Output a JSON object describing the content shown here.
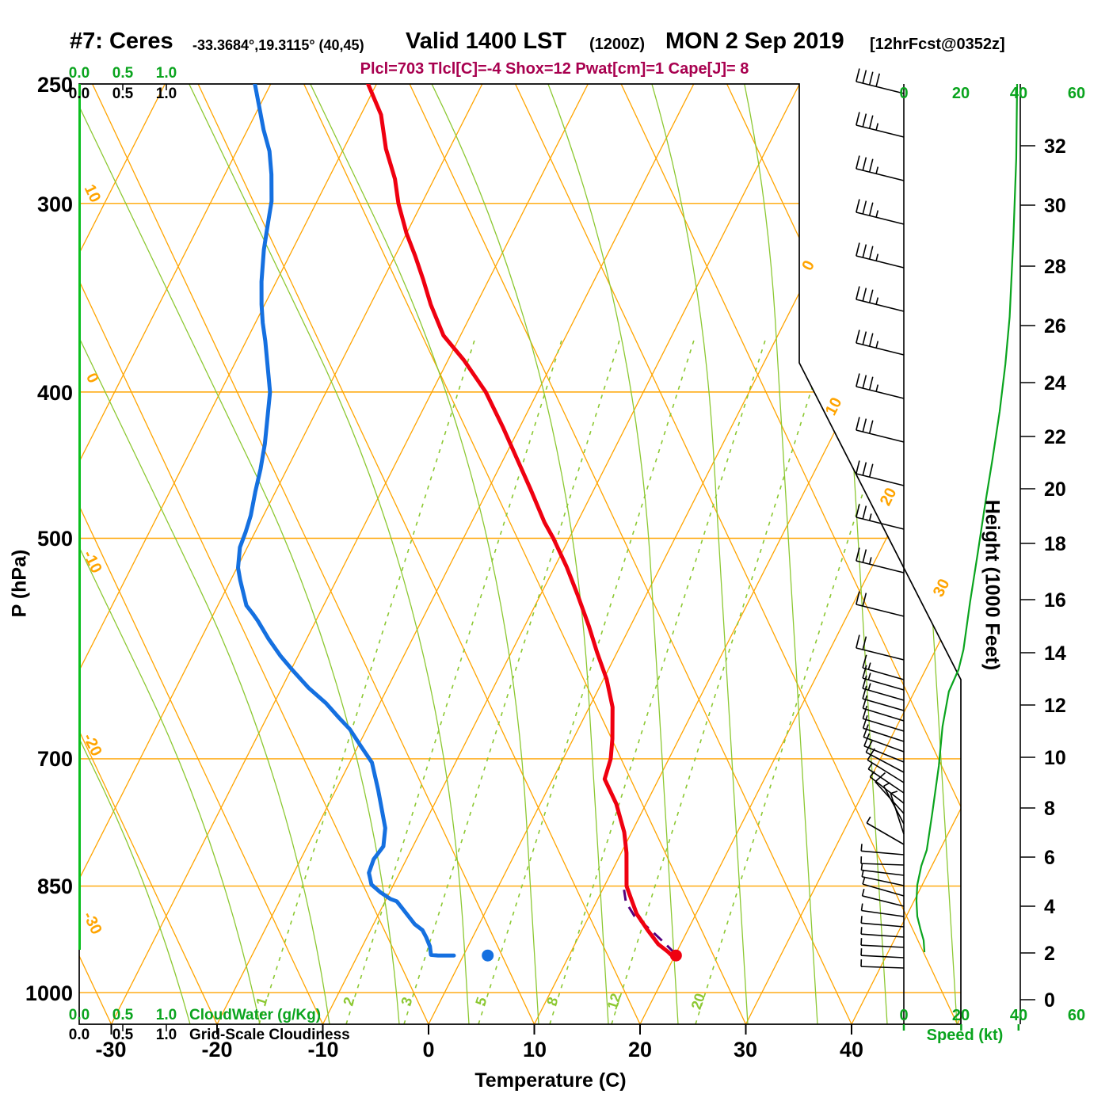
{
  "title": {
    "station": "#7: Ceres",
    "coords": "-33.3684°,19.3115° (40,45)",
    "valid": "Valid 1400 LST",
    "zulu": "(1200Z)",
    "date": "MON 2 Sep 2019",
    "fcst": "[12hrFcst@0352z]"
  },
  "params_line": "Plcl=703 Tlcl[C]=-4 Shox=12 Pwat[cm]=1 Cape[J]= 8",
  "labels": {
    "pressure_axis": "P (hPa)",
    "temp_axis": "Temperature (C)",
    "height_axis": "Height (1000 Feet)",
    "speed_axis": "Speed (kt)",
    "cloudwater": "CloudWater (g/Kg)",
    "cloudiness": "Grid-Scale Cloudiness",
    "cloud_scale": [
      "0.0",
      "0.5",
      "1.0"
    ]
  },
  "colors": {
    "grid_orange": "#ffa400",
    "line_green": "#8cc832",
    "label_green": "#0aa41e",
    "temp_red": "#ef0010",
    "dewpoint_blue": "#1570e0",
    "parcel_purple": "#55007d",
    "params_magenta": "#a8004f",
    "frame_black": "#000000"
  },
  "chart_data": {
    "type": "skewt-log-p",
    "pressure_ticks": [
      250,
      300,
      400,
      500,
      700,
      850,
      1000
    ],
    "temp_ticks": [
      -30,
      -20,
      -10,
      0,
      10,
      20,
      30,
      40
    ],
    "speed_ticks": [
      0,
      20,
      40,
      60
    ],
    "height_ticks_kft": [
      [
        0,
        1262
      ],
      [
        2,
        1203
      ],
      [
        4,
        1144
      ],
      [
        6,
        1082
      ],
      [
        8,
        1020
      ],
      [
        10,
        956
      ],
      [
        12,
        890
      ],
      [
        14,
        824
      ],
      [
        16,
        757
      ],
      [
        18,
        686
      ],
      [
        20,
        617
      ],
      [
        22,
        551
      ],
      [
        24,
        483
      ],
      [
        26,
        411
      ],
      [
        28,
        336
      ],
      [
        30,
        259
      ],
      [
        32,
        184
      ]
    ],
    "mixing_ratio_lines": [
      1,
      2,
      3,
      5,
      8,
      12,
      20
    ],
    "mixing_ratio_x": [
      327,
      437,
      510,
      604,
      694,
      772,
      878
    ],
    "isotherm_edge_labels": [
      [
        0,
        1026,
        338
      ],
      [
        10,
        1058,
        516
      ],
      [
        20,
        1127,
        630
      ],
      [
        30,
        1194,
        745
      ]
    ],
    "adiabat_edge_labels": [
      [
        10,
        247
      ],
      [
        0,
        480
      ],
      [
        -10,
        712
      ],
      [
        -20,
        943
      ],
      [
        -30,
        1168
      ]
    ],
    "temperature_profile": [
      [
        250,
        -50.8
      ],
      [
        262,
        -48.1
      ],
      [
        276,
        -46.0
      ],
      [
        289,
        -43.7
      ],
      [
        300,
        -42.2
      ],
      [
        314,
        -40.0
      ],
      [
        325,
        -38.1
      ],
      [
        337,
        -36.2
      ],
      [
        350,
        -34.3
      ],
      [
        367,
        -31.6
      ],
      [
        381,
        -28.5
      ],
      [
        400,
        -24.9
      ],
      [
        422,
        -21.6
      ],
      [
        444,
        -18.6
      ],
      [
        464,
        -16.0
      ],
      [
        488,
        -13.1
      ],
      [
        500,
        -11.5
      ],
      [
        522,
        -8.9
      ],
      [
        545,
        -6.5
      ],
      [
        572,
        -3.9
      ],
      [
        595,
        -1.9
      ],
      [
        620,
        0.3
      ],
      [
        647,
        2.2
      ],
      [
        679,
        3.7
      ],
      [
        700,
        4.5
      ],
      [
        722,
        4.9
      ],
      [
        750,
        7.2
      ],
      [
        783,
        9.3
      ],
      [
        808,
        10.5
      ],
      [
        850,
        12.1
      ],
      [
        866,
        13.1
      ],
      [
        887,
        14.4
      ],
      [
        909,
        16.2
      ],
      [
        929,
        17.9
      ],
      [
        940,
        19.2
      ],
      [
        944,
        19.6
      ]
    ],
    "dewpoint_profile": [
      [
        250,
        -61.5
      ],
      [
        268,
        -58.5
      ],
      [
        277,
        -56.9
      ],
      [
        287,
        -55.6
      ],
      [
        299,
        -54.3
      ],
      [
        309,
        -53.6
      ],
      [
        322,
        -52.7
      ],
      [
        338,
        -51.4
      ],
      [
        350,
        -50.3
      ],
      [
        360,
        -49.3
      ],
      [
        370,
        -48.2
      ],
      [
        400,
        -45.3
      ],
      [
        433,
        -43.3
      ],
      [
        450,
        -42.5
      ],
      [
        466,
        -41.9
      ],
      [
        483,
        -41.2
      ],
      [
        495,
        -40.9
      ],
      [
        507,
        -40.7
      ],
      [
        523,
        -39.9
      ],
      [
        533,
        -39.1
      ],
      [
        554,
        -37.3
      ],
      [
        561,
        -36.3
      ],
      [
        567,
        -35.5
      ],
      [
        583,
        -33.6
      ],
      [
        598,
        -31.7
      ],
      [
        611,
        -29.9
      ],
      [
        628,
        -27.5
      ],
      [
        643,
        -25.1
      ],
      [
        658,
        -23.1
      ],
      [
        669,
        -21.6
      ],
      [
        686,
        -19.8
      ],
      [
        704,
        -17.9
      ],
      [
        734,
        -16.0
      ],
      [
        778,
        -13.5
      ],
      [
        800,
        -12.8
      ],
      [
        816,
        -13.1
      ],
      [
        833,
        -12.9
      ],
      [
        848,
        -12.1
      ],
      [
        858,
        -10.9
      ],
      [
        867,
        -9.6
      ],
      [
        870,
        -8.9
      ],
      [
        882,
        -7.8
      ],
      [
        901,
        -6.1
      ],
      [
        909,
        -5.1
      ],
      [
        919,
        -4.4
      ],
      [
        932,
        -3.6
      ],
      [
        944,
        -3.1
      ],
      [
        945,
        -2.4
      ],
      [
        945,
        -0.9
      ]
    ],
    "parcel_profile": [
      [
        942,
        19.9
      ],
      [
        927,
        18.4
      ],
      [
        909,
        16.5
      ],
      [
        890,
        14.3
      ],
      [
        871,
        12.8
      ],
      [
        854,
        12.0
      ]
    ],
    "surface_points": {
      "temp": {
        "p": 945,
        "t": 20.1
      },
      "dewpoint": {
        "p": 945,
        "t": 2.3
      }
    },
    "wind_speed_profile": [
      [
        106,
        39.5
      ],
      [
        200,
        39.2
      ],
      [
        300,
        38.2
      ],
      [
        400,
        36.9
      ],
      [
        460,
        35.4
      ],
      [
        520,
        33.4
      ],
      [
        580,
        30.9
      ],
      [
        640,
        28.2
      ],
      [
        700,
        25.7
      ],
      [
        760,
        23.1
      ],
      [
        820,
        20.8
      ],
      [
        845,
        19.1
      ],
      [
        873,
        15.7
      ],
      [
        917,
        13.5
      ],
      [
        967,
        12.2
      ],
      [
        1027,
        9.9
      ],
      [
        1073,
        8.0
      ],
      [
        1093,
        6.1
      ],
      [
        1117,
        4.7
      ],
      [
        1137,
        4.4
      ],
      [
        1157,
        4.7
      ],
      [
        1173,
        5.8
      ],
      [
        1187,
        6.9
      ],
      [
        1202,
        7.2
      ]
    ],
    "wind_barbs": [
      [
        118,
        40,
        14
      ],
      [
        173,
        39,
        14
      ],
      [
        228,
        39,
        14
      ],
      [
        283,
        38,
        14
      ],
      [
        338,
        38,
        14
      ],
      [
        393,
        37,
        14
      ],
      [
        448,
        36,
        14
      ],
      [
        503,
        35,
        14
      ],
      [
        558,
        33,
        14
      ],
      [
        613,
        30,
        14
      ],
      [
        668,
        27,
        14
      ],
      [
        723,
        25,
        14
      ],
      [
        778,
        22,
        14
      ],
      [
        833,
        20,
        14
      ],
      [
        858,
        18,
        16
      ],
      [
        871,
        16,
        16
      ],
      [
        884,
        15,
        16
      ],
      [
        897,
        14,
        16
      ],
      [
        910,
        14,
        17
      ],
      [
        923,
        13,
        17
      ],
      [
        936,
        13,
        18
      ],
      [
        949,
        12,
        20
      ],
      [
        962,
        12,
        22
      ],
      [
        975,
        10,
        28
      ],
      [
        988,
        10,
        32
      ],
      [
        1001,
        9,
        34
      ],
      [
        1014,
        9,
        38
      ],
      [
        1027,
        10,
        48
      ],
      [
        1040,
        9,
        62
      ],
      [
        1053,
        9,
        72
      ],
      [
        1066,
        8,
        30
      ],
      [
        1079,
        8,
        5
      ],
      [
        1092,
        6,
        2
      ],
      [
        1105,
        5,
        7
      ],
      [
        1118,
        5,
        12
      ],
      [
        1131,
        5,
        16
      ],
      [
        1144,
        4,
        14
      ],
      [
        1157,
        5,
        8
      ],
      [
        1170,
        6,
        5
      ],
      [
        1183,
        7,
        4
      ],
      [
        1196,
        7,
        3
      ],
      [
        1209,
        7,
        3
      ],
      [
        1222,
        7,
        2
      ]
    ]
  }
}
